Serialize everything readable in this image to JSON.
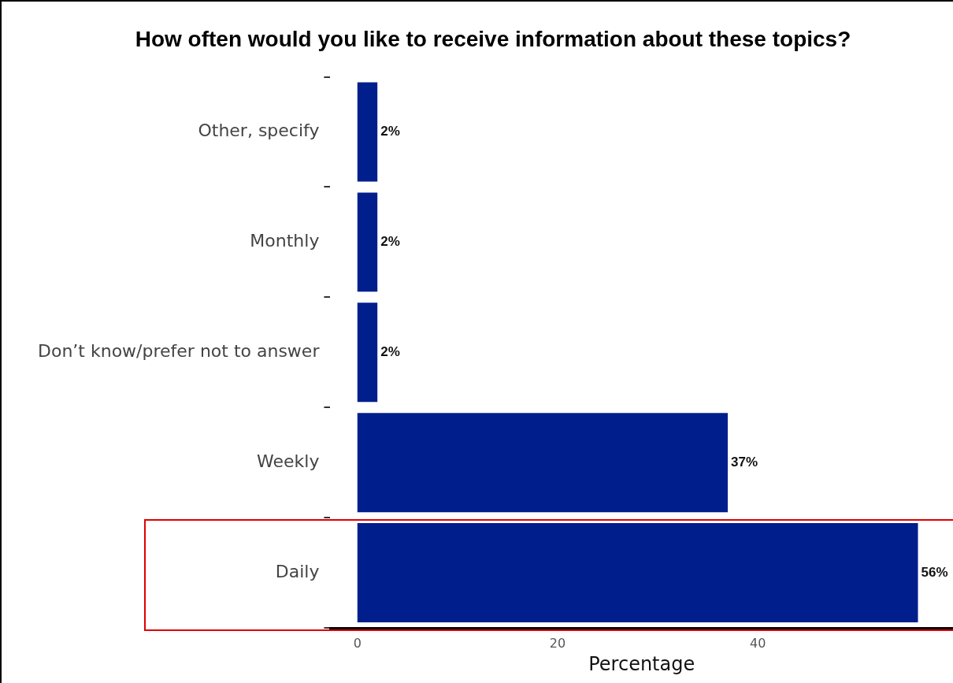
{
  "chart_data": {
    "type": "bar",
    "orientation": "horizontal",
    "title": "How often would you like to receive information about these topics?",
    "xlabel": "Percentage",
    "categories": [
      "Other, specify",
      "Monthly",
      "Don’t know/prefer not to answer",
      "Weekly",
      "Daily"
    ],
    "values": [
      2,
      2,
      2,
      37,
      56
    ],
    "value_labels": [
      "2%",
      "2%",
      "2%",
      "37%",
      "56%"
    ],
    "color": "#001f8c",
    "xlim": [
      -2.7,
      59.5
    ],
    "xticks": [
      0,
      20,
      40
    ],
    "grid": false,
    "legend": false
  }
}
